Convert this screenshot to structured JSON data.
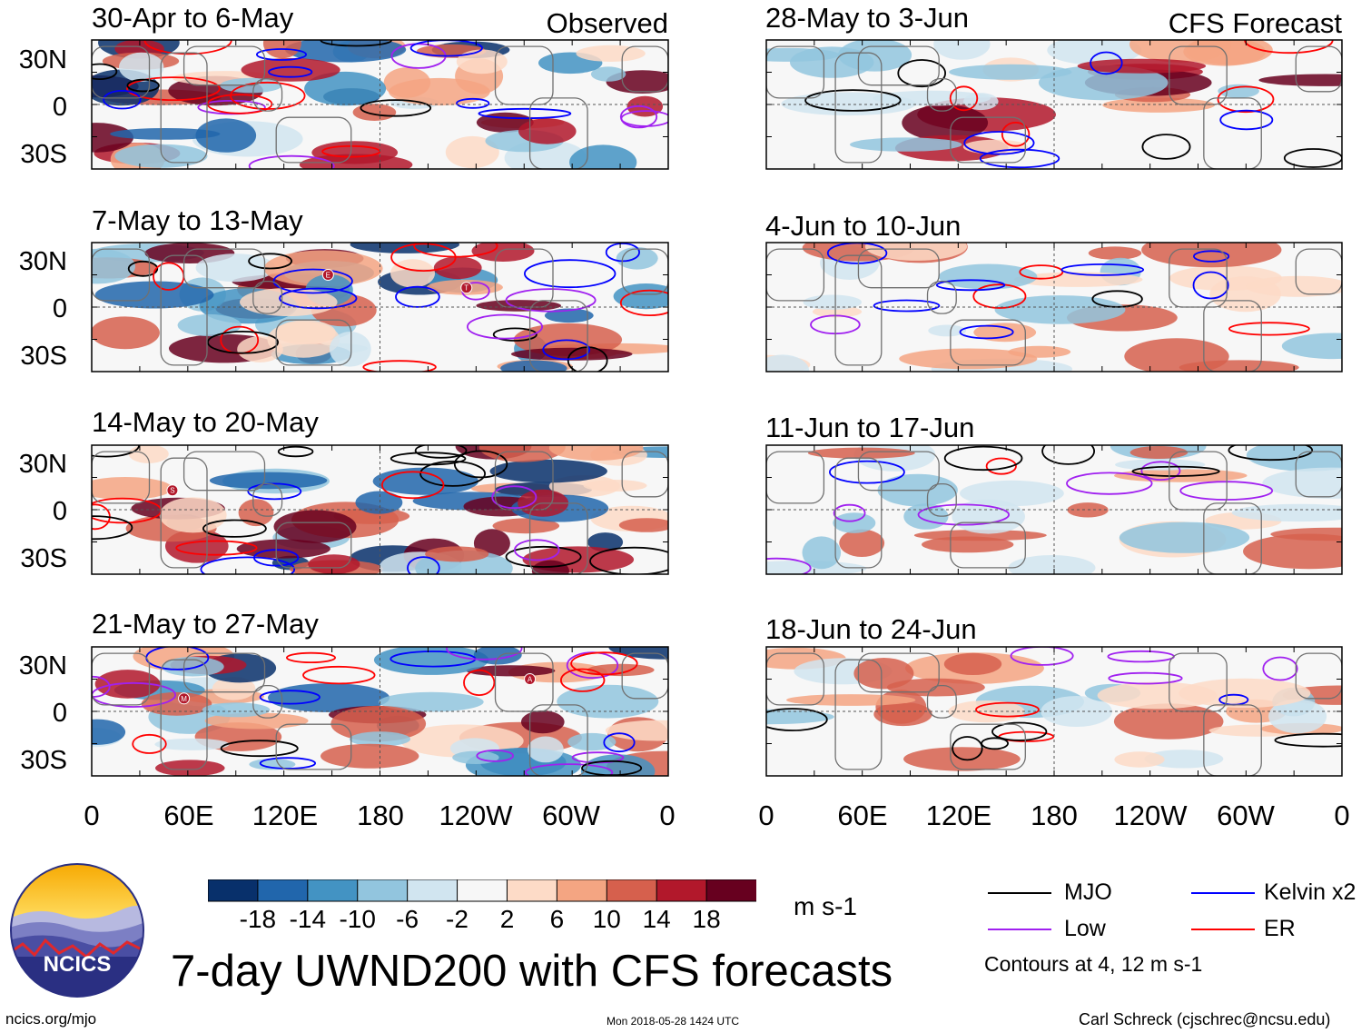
{
  "panels": [
    {
      "id": "p1",
      "title": "30-Apr to 6-May",
      "tag": "Observed",
      "column": "observed",
      "row": 0,
      "storms": []
    },
    {
      "id": "p2",
      "title": "7-May to 13-May",
      "tag": "",
      "column": "observed",
      "row": 1,
      "storms": [
        "E",
        "T"
      ]
    },
    {
      "id": "p3",
      "title": "14-May to 20-May",
      "tag": "",
      "column": "observed",
      "row": 2,
      "storms": [
        "S"
      ]
    },
    {
      "id": "p4",
      "title": "21-May to 27-May",
      "tag": "",
      "column": "observed",
      "row": 3,
      "storms": [
        "M",
        "A"
      ]
    },
    {
      "id": "p5",
      "title": "28-May to 3-Jun",
      "tag": "CFS Forecast",
      "column": "forecast",
      "row": 0,
      "storms": []
    },
    {
      "id": "p6",
      "title": "4-Jun to 10-Jun",
      "tag": "",
      "column": "forecast",
      "row": 1,
      "storms": []
    },
    {
      "id": "p7",
      "title": "11-Jun to 17-Jun",
      "tag": "",
      "column": "forecast",
      "row": 2,
      "storms": []
    },
    {
      "id": "p8",
      "title": "18-Jun to 24-Jun",
      "tag": "",
      "column": "forecast",
      "row": 3,
      "storms": []
    }
  ],
  "axes": {
    "latitude_labels": [
      "30N",
      "0",
      "30S"
    ],
    "longitude_labels": [
      "0",
      "60E",
      "120E",
      "180",
      "120W",
      "60W",
      "0"
    ]
  },
  "colorbar": {
    "colors": [
      "#08306b",
      "#2166ac",
      "#4393c3",
      "#92c5de",
      "#d1e5f0",
      "#f7f7f7",
      "#fddbc7",
      "#f4a582",
      "#d6604d",
      "#b2182b",
      "#67001f"
    ],
    "tick_labels": [
      "-18",
      "-14",
      "-10",
      "-6",
      "-2",
      "2",
      "6",
      "10",
      "14",
      "18"
    ],
    "units": "m s-1"
  },
  "legend": {
    "items": [
      {
        "label": "MJO",
        "color": "#000000"
      },
      {
        "label": "Kelvin x2",
        "color": "#0000ff"
      },
      {
        "label": "Low",
        "color": "#a020f0"
      },
      {
        "label": "ER",
        "color": "#ff0000"
      }
    ],
    "note": "Contours at 4, 12 m s-1"
  },
  "title": "7-day UWND200 with CFS forecasts",
  "logo_text": "NCICS",
  "footer": {
    "left": "ncics.org/mjo",
    "center": "Mon 2018-05-28 1424 UTC",
    "right": "Carl Schreck (cjschrec@ncsu.edu)"
  }
}
